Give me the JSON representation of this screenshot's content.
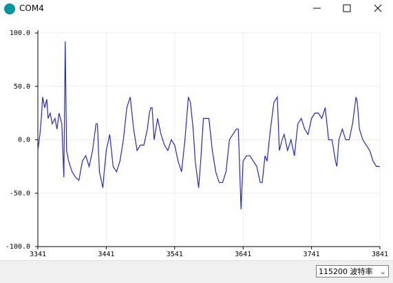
{
  "window": {
    "title": "COM4"
  },
  "chart_data": {
    "type": "line",
    "x": [
      3341,
      3344,
      3346,
      3348,
      3351,
      3354,
      3356,
      3359,
      3362,
      3366,
      3369,
      3372,
      3376,
      3379,
      3381,
      3383,
      3386,
      3391,
      3396,
      3401,
      3406,
      3411,
      3416,
      3421,
      3426,
      3428,
      3431,
      3436,
      3438,
      3441,
      3446,
      3451,
      3456,
      3461,
      3466,
      3471,
      3476,
      3481,
      3486,
      3491,
      3496,
      3501,
      3504,
      3506,
      3508,
      3511,
      3516,
      3521,
      3526,
      3531,
      3536,
      3541,
      3546,
      3551,
      3556,
      3561,
      3564,
      3568,
      3571,
      3576,
      3579,
      3583,
      3586,
      3591,
      3596,
      3601,
      3606,
      3611,
      3616,
      3621,
      3626,
      3631,
      3634,
      3638,
      3641,
      3646,
      3651,
      3656,
      3661,
      3666,
      3669,
      3673,
      3676,
      3681,
      3686,
      3691,
      3694,
      3698,
      3701,
      3706,
      3711,
      3716,
      3721,
      3726,
      3731,
      3736,
      3741,
      3746,
      3751,
      3756,
      3761,
      3766,
      3771,
      3776,
      3778,
      3781,
      3786,
      3791,
      3796,
      3801,
      3806,
      3808,
      3811,
      3816,
      3821,
      3826,
      3831,
      3836,
      3841
    ],
    "series": [
      {
        "color": "#2323dc",
        "values": [
          -10,
          5,
          20,
          40,
          30,
          38,
          20,
          25,
          15,
          20,
          10,
          25,
          15,
          -35,
          92,
          -10,
          -20,
          -30,
          -35,
          -38,
          -20,
          -15,
          -25,
          -10,
          15,
          15,
          -30,
          -45,
          -30,
          -10,
          5,
          -25,
          -30,
          -20,
          0,
          30,
          40,
          10,
          -10,
          -5,
          -5,
          10,
          25,
          30,
          30,
          0,
          20,
          5,
          -5,
          -10,
          0,
          -5,
          -20,
          -30,
          0,
          40,
          35,
          10,
          -20,
          -45,
          -20,
          20,
          20,
          20,
          -10,
          -30,
          -40,
          -40,
          -30,
          0,
          5,
          10,
          10,
          -65,
          -20,
          -15,
          -15,
          -20,
          -25,
          -40,
          -40,
          -15,
          -20,
          10,
          35,
          40,
          -10,
          0,
          5,
          -10,
          0,
          -15,
          15,
          20,
          10,
          5,
          20,
          25,
          25,
          20,
          30,
          0,
          0,
          -20,
          -25,
          0,
          10,
          0,
          0,
          15,
          40,
          35,
          10,
          0,
          -5,
          -10,
          -20,
          -25,
          -25
        ]
      }
    ],
    "xlim": [
      3341,
      3841
    ],
    "xticks": [
      3341,
      3441,
      3541,
      3641,
      3741,
      3841
    ],
    "ylim": [
      -100,
      100
    ],
    "yticks": [
      {
        "value": 100,
        "label": "100.0"
      },
      {
        "value": 50,
        "label": "50.0"
      },
      {
        "value": 0,
        "label": "0.0"
      },
      {
        "value": -50,
        "label": "-50.0"
      },
      {
        "value": -100,
        "label": "-100.0"
      }
    ],
    "grid": true
  },
  "baud_select": "115200 波特率"
}
